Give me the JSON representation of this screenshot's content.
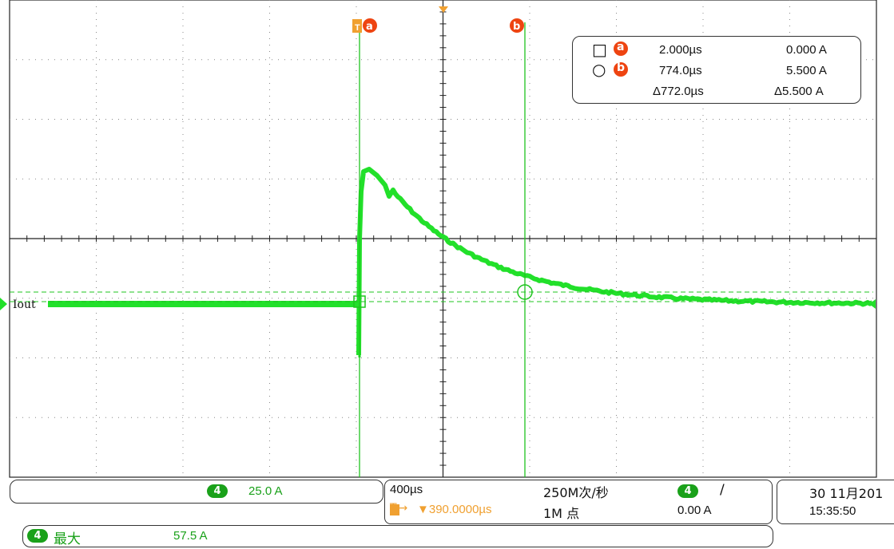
{
  "scope": {
    "channel_label": "Iout",
    "cursor_a_marker": "a",
    "cursor_b_marker": "b",
    "trigger_marker": "T",
    "colors": {
      "waveform": "#22e02a",
      "cursor": "#1fc41f",
      "orange": "#f0a030",
      "marker_red": "#ee4411",
      "grid": "#777777"
    }
  },
  "cursor_readout": {
    "a_symbol": "□",
    "b_symbol": "○",
    "a_badge": "a",
    "b_badge": "b",
    "a_time": "2.000µs",
    "a_value": "0.000 A",
    "b_time": "774.0µs",
    "b_value": "5.500 A",
    "delta_time": "Δ772.0µs",
    "delta_value": "Δ5.500 A"
  },
  "channel_panel": {
    "channel": "4",
    "scale": "25.0 A"
  },
  "timebase_panel": {
    "time_per_div": "400µs",
    "trigger_position": "▼390.0000µs",
    "trigger_icon": "T→",
    "sample_rate": "250M次/秒",
    "record_length": "1M 点",
    "trigger_channel": "4",
    "trigger_slope": "/",
    "trigger_level": "0.00 A"
  },
  "datetime_panel": {
    "date": "30 11月201",
    "time": "15:35:50"
  },
  "measurement_panel": {
    "channel": "4",
    "label": "最大",
    "value": "57.5 A"
  }
}
